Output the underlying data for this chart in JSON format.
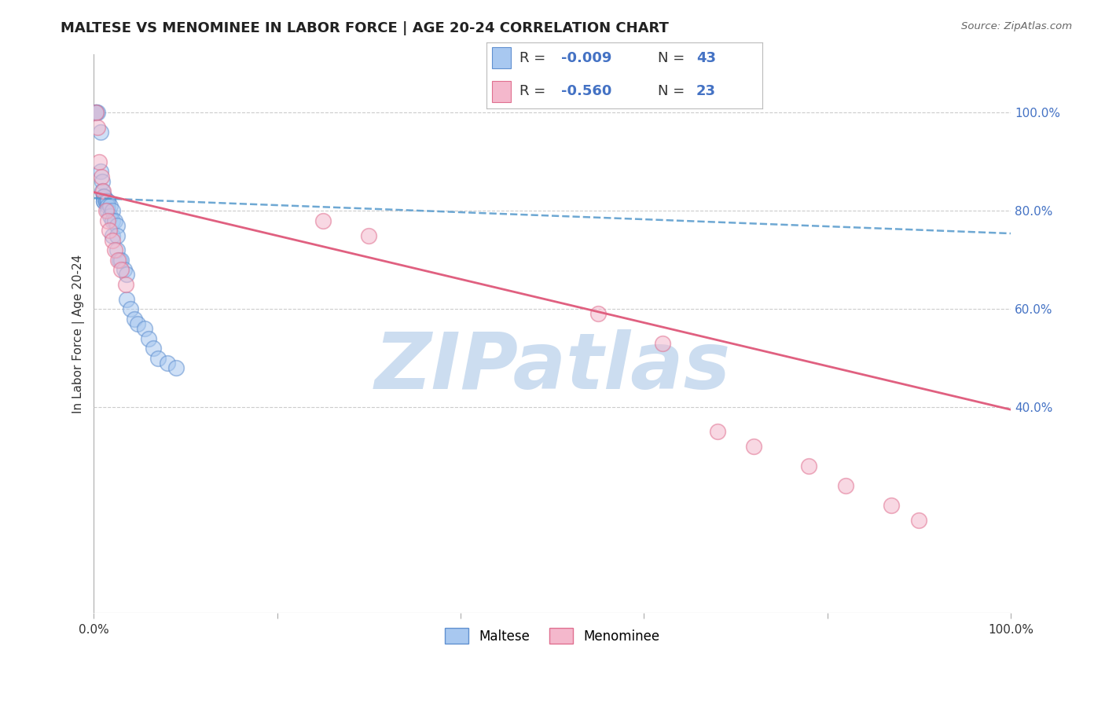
{
  "title": "MALTESE VS MENOMINEE IN LABOR FORCE | AGE 20-24 CORRELATION CHART",
  "source": "Source: ZipAtlas.com",
  "ylabel": "In Labor Force | Age 20-24",
  "xlim": [
    0.0,
    1.0
  ],
  "ylim": [
    -0.02,
    1.12
  ],
  "x_ticks": [
    0.0,
    0.2,
    0.4,
    0.6,
    0.8,
    1.0
  ],
  "x_tick_labels": [
    "0.0%",
    "",
    "",
    "",
    "",
    "100.0%"
  ],
  "y_ticks_right": [
    0.4,
    0.6,
    0.8,
    1.0
  ],
  "y_tick_labels_right": [
    "40.0%",
    "60.0%",
    "80.0%",
    "100.0%"
  ],
  "maltese_color": "#a8c8f0",
  "menominee_color": "#f4b8cc",
  "maltese_edge": "#6090d0",
  "menominee_edge": "#e07090",
  "blue_line_color": "#5599cc",
  "pink_line_color": "#e06080",
  "watermark": "ZIPatlas",
  "watermark_color": "#ccddf0",
  "grid_color": "#cccccc",
  "maltese_x": [
    0.002,
    0.002,
    0.002,
    0.004,
    0.007,
    0.007,
    0.009,
    0.009,
    0.011,
    0.011,
    0.011,
    0.011,
    0.011,
    0.013,
    0.013,
    0.013,
    0.015,
    0.015,
    0.015,
    0.015,
    0.018,
    0.018,
    0.02,
    0.02,
    0.02,
    0.023,
    0.025,
    0.025,
    0.025,
    0.028,
    0.03,
    0.033,
    0.036,
    0.036,
    0.04,
    0.044,
    0.048,
    0.055,
    0.06,
    0.065,
    0.07,
    0.08,
    0.09
  ],
  "maltese_y": [
    1.0,
    1.0,
    1.0,
    1.0,
    0.96,
    0.88,
    0.86,
    0.84,
    0.83,
    0.83,
    0.83,
    0.82,
    0.82,
    0.82,
    0.82,
    0.82,
    0.82,
    0.82,
    0.81,
    0.8,
    0.81,
    0.79,
    0.8,
    0.78,
    0.75,
    0.78,
    0.77,
    0.75,
    0.72,
    0.7,
    0.7,
    0.68,
    0.67,
    0.62,
    0.6,
    0.58,
    0.57,
    0.56,
    0.54,
    0.52,
    0.5,
    0.49,
    0.48
  ],
  "menominee_x": [
    0.002,
    0.004,
    0.006,
    0.008,
    0.01,
    0.013,
    0.015,
    0.017,
    0.02,
    0.023,
    0.026,
    0.03,
    0.035,
    0.25,
    0.3,
    0.55,
    0.62,
    0.68,
    0.72,
    0.78,
    0.82,
    0.87,
    0.9
  ],
  "menominee_y": [
    1.0,
    0.97,
    0.9,
    0.87,
    0.84,
    0.8,
    0.78,
    0.76,
    0.74,
    0.72,
    0.7,
    0.68,
    0.65,
    0.78,
    0.75,
    0.59,
    0.53,
    0.35,
    0.32,
    0.28,
    0.24,
    0.2,
    0.17
  ],
  "blue_trend_start_x": 0.0,
  "blue_trend_start_y": 0.826,
  "blue_trend_end_x": 1.0,
  "blue_trend_end_y": 0.754,
  "pink_trend_start_x": 0.0,
  "pink_trend_start_y": 0.838,
  "pink_trend_end_x": 1.0,
  "pink_trend_end_y": 0.395,
  "marker_size_pts": 200,
  "alpha": 0.55,
  "legend_r1": "-0.009",
  "legend_n1": "43",
  "legend_r2": "-0.560",
  "legend_n2": "23",
  "title_fontsize": 13,
  "axis_label_fontsize": 11,
  "tick_fontsize": 11,
  "right_tick_color": "#4472c4",
  "legend_text_color": "#333333",
  "legend_value_color": "#4472c4"
}
